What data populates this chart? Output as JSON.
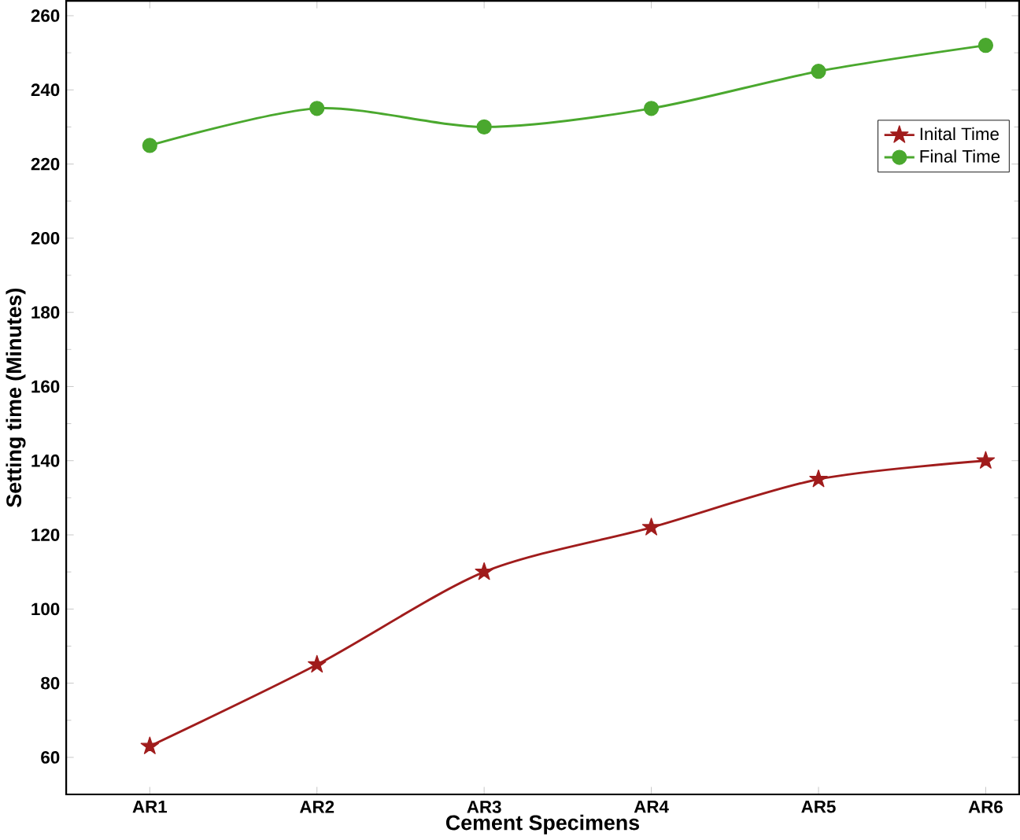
{
  "chart_data": {
    "type": "line",
    "xlabel": "Cement Specimens",
    "ylabel": "Setting time (Minutes)",
    "categories": [
      "AR1",
      "AR2",
      "AR3",
      "AR4",
      "AR5",
      "AR6"
    ],
    "series": [
      {
        "name": "Inital Time",
        "color": "#a01c1c",
        "marker": "star",
        "values": [
          63,
          85,
          110,
          122,
          135,
          140
        ]
      },
      {
        "name": "Final Time",
        "color": "#4aa82e",
        "marker": "circle",
        "values": [
          225,
          235,
          230,
          235,
          245,
          252
        ]
      }
    ],
    "ylim": [
      50,
      264
    ],
    "yticks": [
      60,
      80,
      100,
      120,
      140,
      160,
      180,
      200,
      220,
      240,
      260
    ],
    "grid": false,
    "legend": "top right"
  }
}
